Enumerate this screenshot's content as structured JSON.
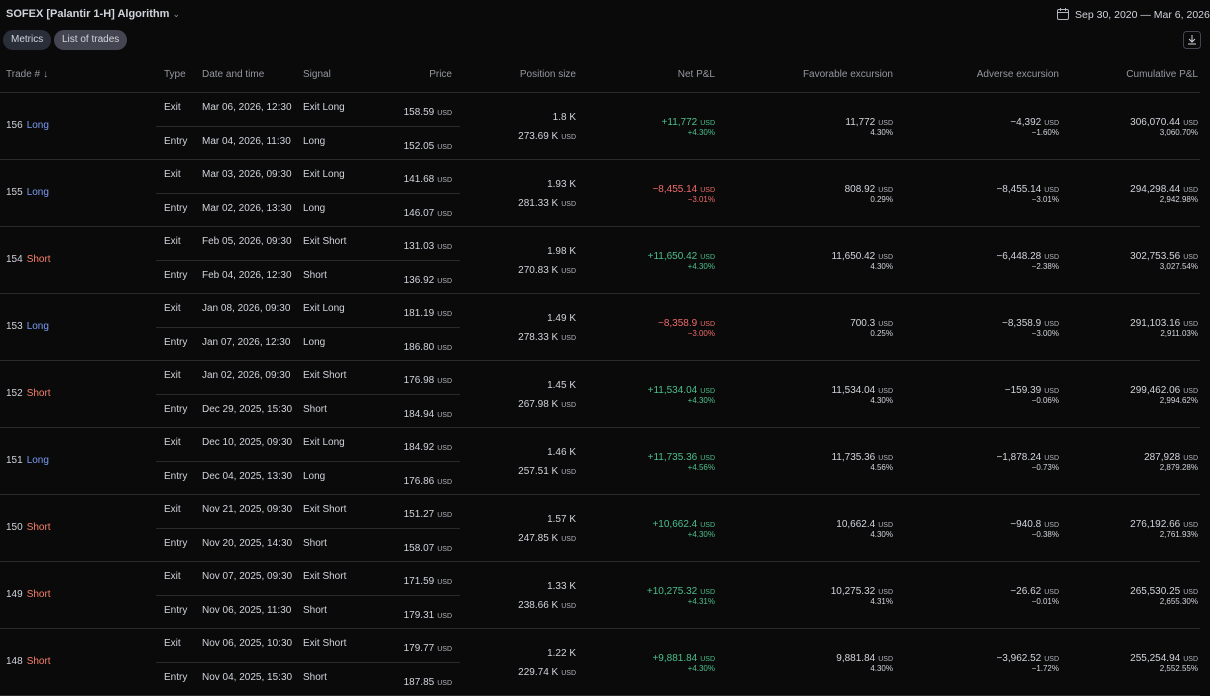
{
  "header": {
    "title": "SOFEX [Palantir 1-H] Algorithm",
    "date_range": "Sep 30, 2020 — Mar 6, 2026",
    "tabs": [
      "Metrics",
      "List of trades"
    ]
  },
  "table": {
    "columns": [
      "Trade #",
      "Type",
      "Date and time",
      "Signal",
      "Price",
      "Position size",
      "Net P&L",
      "Favorable excursion",
      "Adverse excursion",
      "Cumulative P&L"
    ],
    "currency": "USD",
    "trades": [
      {
        "number": "156",
        "direction": "Long",
        "exit": {
          "type": "Exit",
          "date": "Mar 06, 2026, 12:30",
          "signal": "Exit Long",
          "price": "158.59"
        },
        "entry": {
          "type": "Entry",
          "date": "Mar 04, 2026, 11:30",
          "signal": "Long",
          "price": "152.05"
        },
        "position": {
          "qty": "1.8 K",
          "value": "273.69 K"
        },
        "net_pnl": {
          "value": "+11,772",
          "percent": "+4.30%"
        },
        "favorable": {
          "value": "11,772",
          "percent": "4.30%"
        },
        "adverse": {
          "value": "−4,392",
          "percent": "−1.60%"
        },
        "cumulative": {
          "value": "306,070.44",
          "percent": "3,060.70%"
        }
      },
      {
        "number": "155",
        "direction": "Long",
        "exit": {
          "type": "Exit",
          "date": "Mar 03, 2026, 09:30",
          "signal": "Exit Long",
          "price": "141.68"
        },
        "entry": {
          "type": "Entry",
          "date": "Mar 02, 2026, 13:30",
          "signal": "Long",
          "price": "146.07"
        },
        "position": {
          "qty": "1.93 K",
          "value": "281.33 K"
        },
        "net_pnl": {
          "value": "−8,455.14",
          "percent": "−3.01%"
        },
        "favorable": {
          "value": "808.92",
          "percent": "0.29%"
        },
        "adverse": {
          "value": "−8,455.14",
          "percent": "−3.01%"
        },
        "cumulative": {
          "value": "294,298.44",
          "percent": "2,942.98%"
        }
      },
      {
        "number": "154",
        "direction": "Short",
        "exit": {
          "type": "Exit",
          "date": "Feb 05, 2026, 09:30",
          "signal": "Exit Short",
          "price": "131.03"
        },
        "entry": {
          "type": "Entry",
          "date": "Feb 04, 2026, 12:30",
          "signal": "Short",
          "price": "136.92"
        },
        "position": {
          "qty": "1.98 K",
          "value": "270.83 K"
        },
        "net_pnl": {
          "value": "+11,650.42",
          "percent": "+4.30%"
        },
        "favorable": {
          "value": "11,650.42",
          "percent": "4.30%"
        },
        "adverse": {
          "value": "−6,448.28",
          "percent": "−2.38%"
        },
        "cumulative": {
          "value": "302,753.56",
          "percent": "3,027.54%"
        }
      },
      {
        "number": "153",
        "direction": "Long",
        "exit": {
          "type": "Exit",
          "date": "Jan 08, 2026, 09:30",
          "signal": "Exit Long",
          "price": "181.19"
        },
        "entry": {
          "type": "Entry",
          "date": "Jan 07, 2026, 12:30",
          "signal": "Long",
          "price": "186.80"
        },
        "position": {
          "qty": "1.49 K",
          "value": "278.33 K"
        },
        "net_pnl": {
          "value": "−8,358.9",
          "percent": "−3.00%"
        },
        "favorable": {
          "value": "700.3",
          "percent": "0.25%"
        },
        "adverse": {
          "value": "−8,358.9",
          "percent": "−3.00%"
        },
        "cumulative": {
          "value": "291,103.16",
          "percent": "2,911.03%"
        }
      },
      {
        "number": "152",
        "direction": "Short",
        "exit": {
          "type": "Exit",
          "date": "Jan 02, 2026, 09:30",
          "signal": "Exit Short",
          "price": "176.98"
        },
        "entry": {
          "type": "Entry",
          "date": "Dec 29, 2025, 15:30",
          "signal": "Short",
          "price": "184.94"
        },
        "position": {
          "qty": "1.45 K",
          "value": "267.98 K"
        },
        "net_pnl": {
          "value": "+11,534.04",
          "percent": "+4.30%"
        },
        "favorable": {
          "value": "11,534.04",
          "percent": "4.30%"
        },
        "adverse": {
          "value": "−159.39",
          "percent": "−0.06%"
        },
        "cumulative": {
          "value": "299,462.06",
          "percent": "2,994.62%"
        }
      },
      {
        "number": "151",
        "direction": "Long",
        "exit": {
          "type": "Exit",
          "date": "Dec 10, 2025, 09:30",
          "signal": "Exit Long",
          "price": "184.92"
        },
        "entry": {
          "type": "Entry",
          "date": "Dec 04, 2025, 13:30",
          "signal": "Long",
          "price": "176.86"
        },
        "position": {
          "qty": "1.46 K",
          "value": "257.51 K"
        },
        "net_pnl": {
          "value": "+11,735.36",
          "percent": "+4.56%"
        },
        "favorable": {
          "value": "11,735.36",
          "percent": "4.56%"
        },
        "adverse": {
          "value": "−1,878.24",
          "percent": "−0.73%"
        },
        "cumulative": {
          "value": "287,928",
          "percent": "2,879.28%"
        }
      },
      {
        "number": "150",
        "direction": "Short",
        "exit": {
          "type": "Exit",
          "date": "Nov 21, 2025, 09:30",
          "signal": "Exit Short",
          "price": "151.27"
        },
        "entry": {
          "type": "Entry",
          "date": "Nov 20, 2025, 14:30",
          "signal": "Short",
          "price": "158.07"
        },
        "position": {
          "qty": "1.57 K",
          "value": "247.85 K"
        },
        "net_pnl": {
          "value": "+10,662.4",
          "percent": "+4.30%"
        },
        "favorable": {
          "value": "10,662.4",
          "percent": "4.30%"
        },
        "adverse": {
          "value": "−940.8",
          "percent": "−0.38%"
        },
        "cumulative": {
          "value": "276,192.66",
          "percent": "2,761.93%"
        }
      },
      {
        "number": "149",
        "direction": "Short",
        "exit": {
          "type": "Exit",
          "date": "Nov 07, 2025, 09:30",
          "signal": "Exit Short",
          "price": "171.59"
        },
        "entry": {
          "type": "Entry",
          "date": "Nov 06, 2025, 11:30",
          "signal": "Short",
          "price": "179.31"
        },
        "position": {
          "qty": "1.33 K",
          "value": "238.66 K"
        },
        "net_pnl": {
          "value": "+10,275.32",
          "percent": "+4.31%"
        },
        "favorable": {
          "value": "10,275.32",
          "percent": "4.31%"
        },
        "adverse": {
          "value": "−26.62",
          "percent": "−0.01%"
        },
        "cumulative": {
          "value": "265,530.25",
          "percent": "2,655.30%"
        }
      },
      {
        "number": "148",
        "direction": "Short",
        "exit": {
          "type": "Exit",
          "date": "Nov 06, 2025, 10:30",
          "signal": "Exit Short",
          "price": "179.77"
        },
        "entry": {
          "type": "Entry",
          "date": "Nov 04, 2025, 15:30",
          "signal": "Short",
          "price": "187.85"
        },
        "position": {
          "qty": "1.22 K",
          "value": "229.74 K"
        },
        "net_pnl": {
          "value": "+9,881.84",
          "percent": "+4.30%"
        },
        "favorable": {
          "value": "9,881.84",
          "percent": "4.30%"
        },
        "adverse": {
          "value": "−3,962.52",
          "percent": "−1.72%"
        },
        "cumulative": {
          "value": "255,254.94",
          "percent": "2,552.55%"
        }
      }
    ]
  }
}
